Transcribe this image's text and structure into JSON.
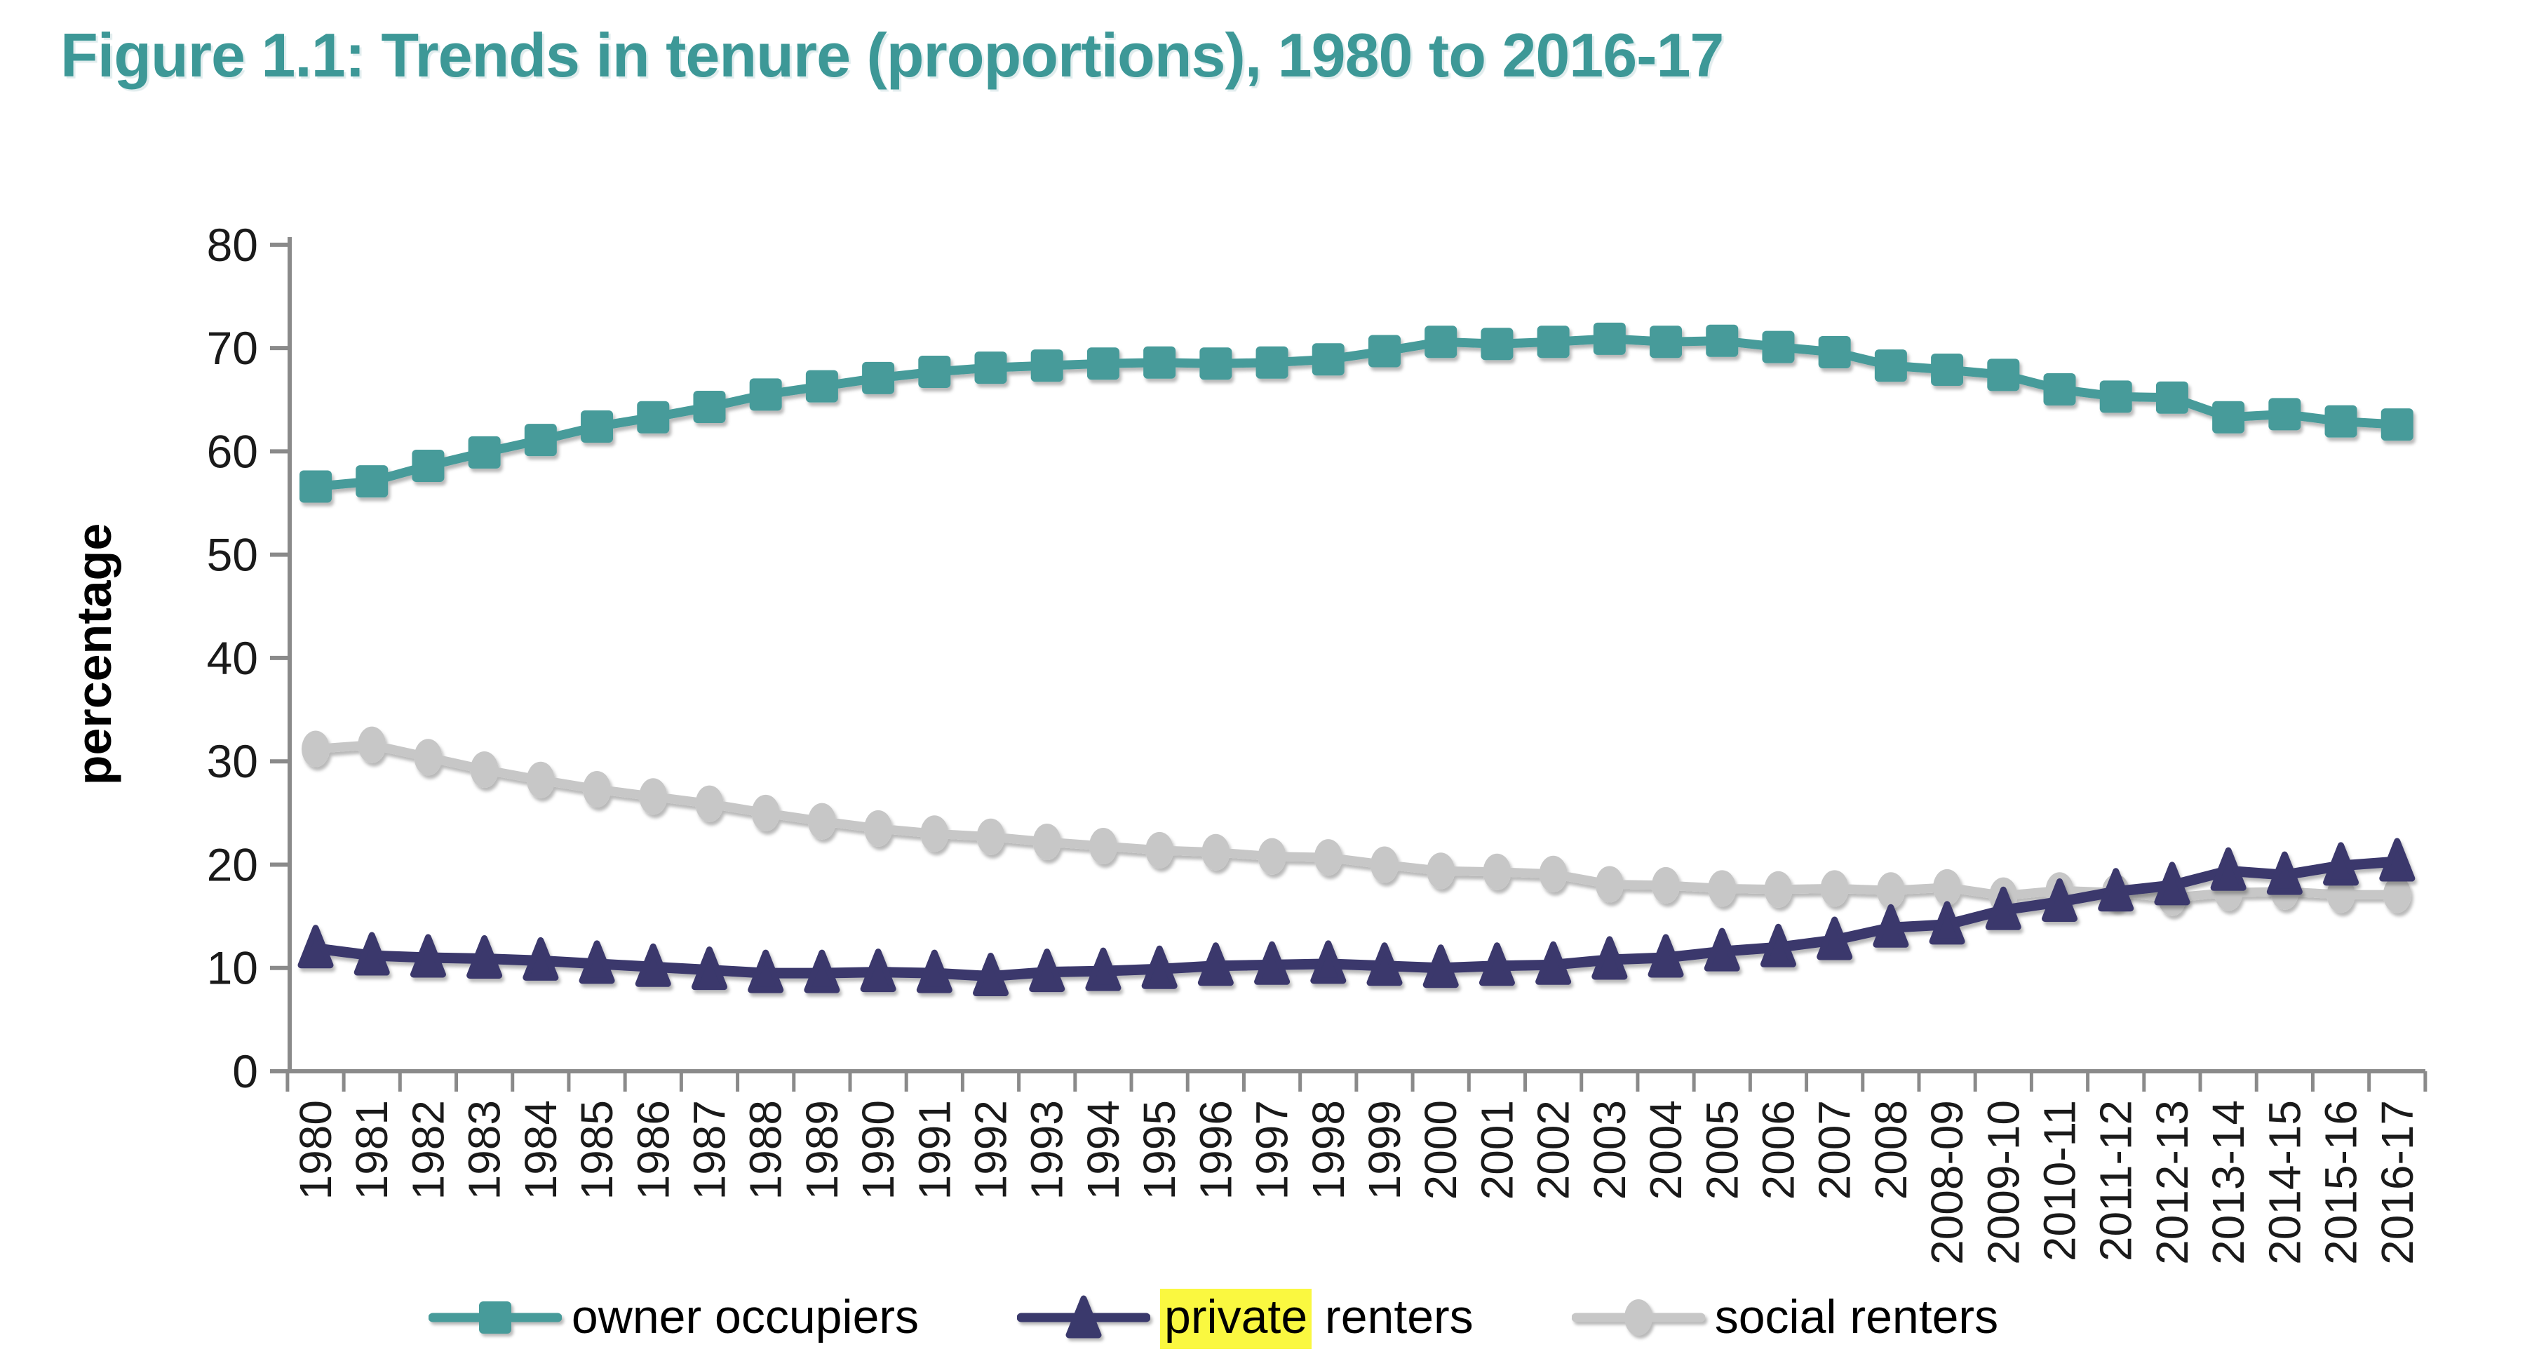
{
  "title": "Figure 1.1: Trends in tenure (proportions), 1980 to 2016-17",
  "colors": {
    "title": "#3D9897",
    "axis": "#8A8A8A",
    "text": "#1A1A1A",
    "highlight": "#FAF840"
  },
  "chart_data": {
    "type": "line",
    "title": "Figure 1.1: Trends in tenure (proportions), 1980 to 2016-17",
    "xlabel": "",
    "ylabel": "percentage",
    "ylim": [
      0,
      80
    ],
    "yticks": [
      0,
      10,
      20,
      30,
      40,
      50,
      60,
      70,
      80
    ],
    "grid": false,
    "legend_position": "bottom",
    "categories": [
      "1980",
      "1981",
      "1982",
      "1983",
      "1984",
      "1985",
      "1986",
      "1987",
      "1988",
      "1989",
      "1990",
      "1991",
      "1992",
      "1993",
      "1994",
      "1995",
      "1996",
      "1997",
      "1998",
      "1999",
      "2000",
      "2001",
      "2002",
      "2003",
      "2004",
      "2005",
      "2006",
      "2007",
      "2008",
      "2008-09",
      "2009-10",
      "2010-11",
      "2011-12",
      "2012-13",
      "2013-14",
      "2014-15",
      "2015-16",
      "2016-17"
    ],
    "series": [
      {
        "name": "owner occupiers",
        "marker": "square-marker",
        "color": "#479B9A",
        "values": [
          56.6,
          57.1,
          58.6,
          59.9,
          61.1,
          62.4,
          63.3,
          64.3,
          65.5,
          66.3,
          67.1,
          67.7,
          68.1,
          68.3,
          68.5,
          68.6,
          68.5,
          68.6,
          68.9,
          69.7,
          70.6,
          70.4,
          70.6,
          70.9,
          70.6,
          70.7,
          70.1,
          69.6,
          68.3,
          67.9,
          67.4,
          66.0,
          65.3,
          65.2,
          63.3,
          63.6,
          62.9,
          62.6
        ]
      },
      {
        "name": "social renters",
        "marker": "circle-marker",
        "color": "#C7C7C7",
        "values": [
          31.2,
          31.6,
          30.4,
          29.2,
          28.2,
          27.3,
          26.6,
          25.9,
          25.0,
          24.2,
          23.5,
          23.0,
          22.7,
          22.2,
          21.8,
          21.4,
          21.2,
          20.8,
          20.7,
          20.0,
          19.4,
          19.3,
          19.1,
          18.1,
          18.0,
          17.7,
          17.6,
          17.7,
          17.5,
          17.8,
          17.0,
          17.5,
          17.3,
          16.8,
          17.3,
          17.4,
          17.1,
          17.1
        ]
      },
      {
        "name": "private renters",
        "marker": "triangle-marker",
        "color": "#3A396C",
        "values": [
          11.9,
          11.2,
          11.0,
          10.9,
          10.7,
          10.4,
          10.1,
          9.8,
          9.5,
          9.5,
          9.6,
          9.5,
          9.2,
          9.6,
          9.7,
          9.9,
          10.2,
          10.3,
          10.4,
          10.2,
          10.0,
          10.2,
          10.3,
          10.8,
          11.0,
          11.6,
          12.0,
          12.7,
          13.9,
          14.2,
          15.6,
          16.4,
          17.4,
          18.0,
          19.4,
          19.0,
          19.9,
          20.3
        ]
      }
    ],
    "legend": {
      "items": [
        {
          "label": "owner occupiers",
          "highlight": "",
          "marker": "square-marker",
          "color": "#479B9A"
        },
        {
          "label": "private renters",
          "highlight": "private",
          "marker": "triangle-marker",
          "color": "#3A396C"
        },
        {
          "label": "social renters",
          "highlight": "",
          "marker": "circle-marker",
          "color": "#C7C7C7"
        }
      ]
    }
  }
}
